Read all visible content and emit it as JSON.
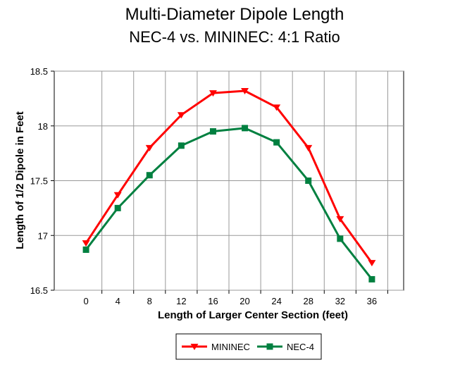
{
  "chart_data": {
    "type": "line",
    "title": "Multi-Diameter Dipole Length",
    "subtitle": "NEC-4 vs. MININEC:  4:1 Ratio",
    "xlabel": "Length of Larger Center Section (feet)",
    "ylabel": "Length of 1/2 Dipole in Feet",
    "x": [
      0,
      4,
      8,
      12,
      16,
      20,
      24,
      28,
      32,
      36
    ],
    "x_tick_labels": [
      "0",
      "4",
      "8",
      "12",
      "16",
      "20",
      "24",
      "28",
      "32",
      "36"
    ],
    "y_tick_labels": [
      "16.5",
      "17",
      "17.5",
      "18",
      "18.5"
    ],
    "ylim": [
      16.5,
      18.5
    ],
    "grid": true,
    "legend_position": "bottom-center",
    "series": [
      {
        "name": "MININEC",
        "color": "#ff0000",
        "marker": "triangle-down",
        "values": [
          16.93,
          17.37,
          17.8,
          18.1,
          18.3,
          18.32,
          18.17,
          17.8,
          17.15,
          16.75
        ]
      },
      {
        "name": "NEC-4",
        "color": "#008040",
        "marker": "square",
        "values": [
          16.87,
          17.25,
          17.55,
          17.82,
          17.95,
          17.98,
          17.85,
          17.5,
          16.97,
          16.6
        ]
      }
    ]
  }
}
